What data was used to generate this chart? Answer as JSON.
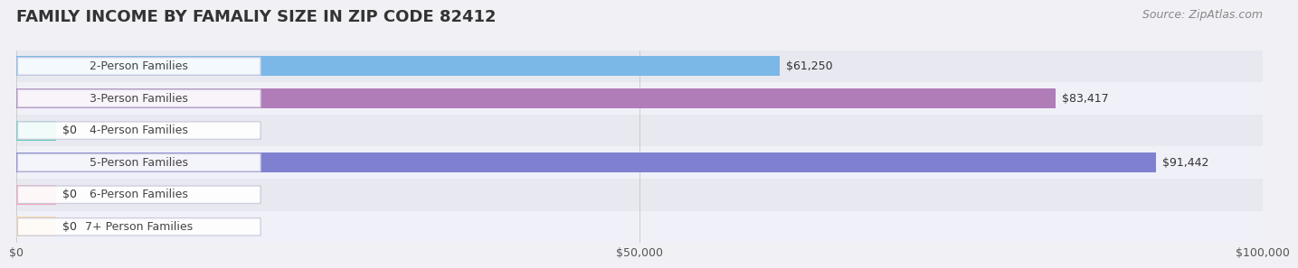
{
  "title": "FAMILY INCOME BY FAMALIY SIZE IN ZIP CODE 82412",
  "source": "Source: ZipAtlas.com",
  "categories": [
    "2-Person Families",
    "3-Person Families",
    "4-Person Families",
    "5-Person Families",
    "6-Person Families",
    "7+ Person Families"
  ],
  "values": [
    61250,
    83417,
    0,
    91442,
    0,
    0
  ],
  "bar_colors": [
    "#7bb8e8",
    "#b07db8",
    "#5ecfb8",
    "#8080d0",
    "#f4a0b0",
    "#f8d8a8"
  ],
  "label_colors": [
    "#ffffff",
    "#ffffff",
    "#555555",
    "#ffffff",
    "#555555",
    "#555555"
  ],
  "xlim": [
    0,
    100000
  ],
  "xticks": [
    0,
    50000,
    100000
  ],
  "xtick_labels": [
    "$0",
    "$50,000",
    "$100,000"
  ],
  "bar_height": 0.62,
  "background_color": "#f0f0f5",
  "row_bg_colors": [
    "#e8e8f0",
    "#f0f0f8"
  ],
  "title_fontsize": 13,
  "label_fontsize": 9,
  "value_fontsize": 9,
  "source_fontsize": 9
}
